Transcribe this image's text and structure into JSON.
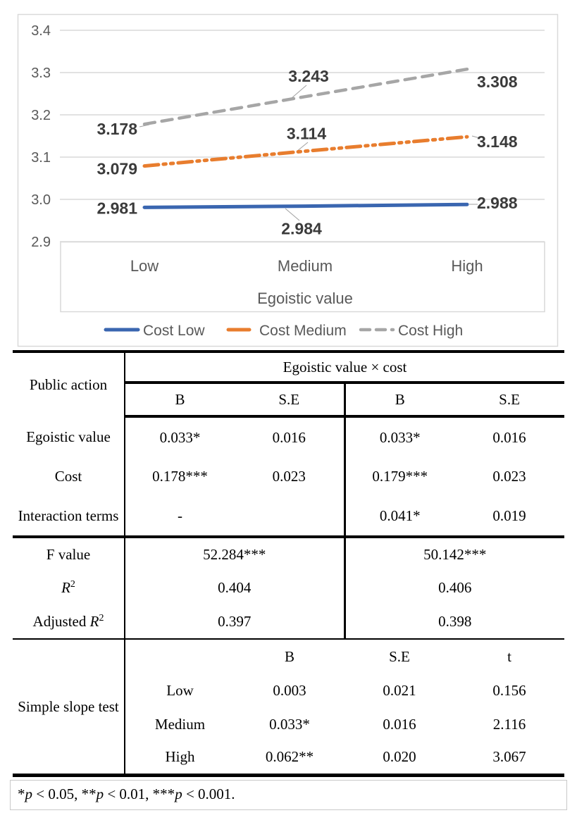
{
  "chart_data": {
    "type": "line",
    "categories": [
      "Low",
      "Medium",
      "High"
    ],
    "series": [
      {
        "name": "Cost Low",
        "values": [
          2.981,
          2.984,
          2.988
        ],
        "color": "#3a66b0",
        "style": "solid"
      },
      {
        "name": "Cost Medium",
        "values": [
          3.079,
          3.114,
          3.148
        ],
        "color": "#e87d2e",
        "style": "dash-dot-dot"
      },
      {
        "name": "Cost High",
        "values": [
          3.178,
          3.243,
          3.308
        ],
        "color": "#a6a6a6",
        "style": "dashed"
      }
    ],
    "title": "",
    "xlabel": "Egoistic value",
    "ylabel": "",
    "ylim": [
      2.9,
      3.4
    ],
    "ytick_labels": [
      "3.4",
      "3.3",
      "3.2",
      "3.1",
      "3.0",
      "2.9"
    ],
    "grid": true,
    "legend_position": "bottom",
    "data_labels": true,
    "colors": {
      "grid": "#d9d9d9",
      "axis_text": "#595959",
      "data_label_text": "#3b3b3b"
    }
  },
  "table": {
    "header": {
      "row_col": "Public action",
      "group_title": "Egoistic value × cost",
      "sub_cols": [
        "B",
        "S.E",
        "B",
        "S.E"
      ]
    },
    "rows": [
      {
        "label": "Egoistic value",
        "cells": [
          "0.033*",
          "0.016",
          "0.033*",
          "0.016"
        ]
      },
      {
        "label": "Cost",
        "cells": [
          "0.178***",
          "0.023",
          "0.179***",
          "0.023"
        ]
      },
      {
        "label": "Interaction terms",
        "cells": [
          "-",
          "",
          "0.041*",
          "0.019"
        ]
      }
    ],
    "stats": [
      {
        "pre": "F value",
        "r": "",
        "sup": "",
        "m1": "52.284***",
        "m2": "50.142***"
      },
      {
        "pre": "",
        "r": "R",
        "sup": "2",
        "m1": "0.404",
        "m2": "0.406"
      },
      {
        "pre": "Adjusted ",
        "r": "R",
        "sup": "2",
        "m1": "0.397",
        "m2": "0.398"
      }
    ],
    "slope": {
      "label": "Simple slope test",
      "sub_header": [
        "B",
        "S.E",
        "t"
      ],
      "rows": [
        {
          "level": "Low",
          "b": "0.003",
          "se": "0.021",
          "t": "0.156"
        },
        {
          "level": "Medium",
          "b": "0.033*",
          "se": "0.016",
          "t": "2.116"
        },
        {
          "level": "High",
          "b": "0.062**",
          "se": "0.020",
          "t": "3.067"
        }
      ]
    },
    "footnote_parts": [
      "*",
      "p",
      " < 0.05, **",
      "p",
      " < 0.01, ***",
      "p",
      " < 0.001."
    ]
  }
}
